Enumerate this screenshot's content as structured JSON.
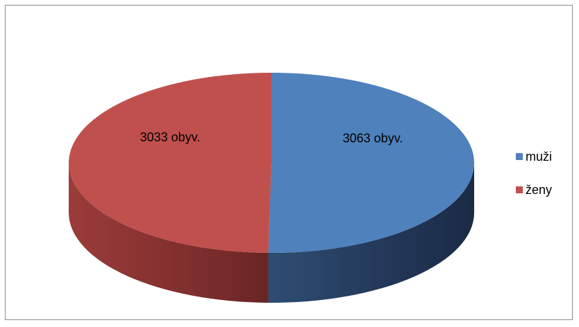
{
  "chart_data": {
    "type": "pie",
    "style": "3d",
    "slices": [
      {
        "name": "muži",
        "value": 3063,
        "label": "3063 obyv.",
        "color": "#4f81bd"
      },
      {
        "name": "ženy",
        "value": 3033,
        "label": "3033 obyv.",
        "color": "#c0504d"
      }
    ],
    "legend": {
      "position": "right",
      "items": [
        {
          "label": "muži",
          "color": "#4f81bd"
        },
        {
          "label": "ženy",
          "color": "#c0504d"
        }
      ]
    }
  }
}
